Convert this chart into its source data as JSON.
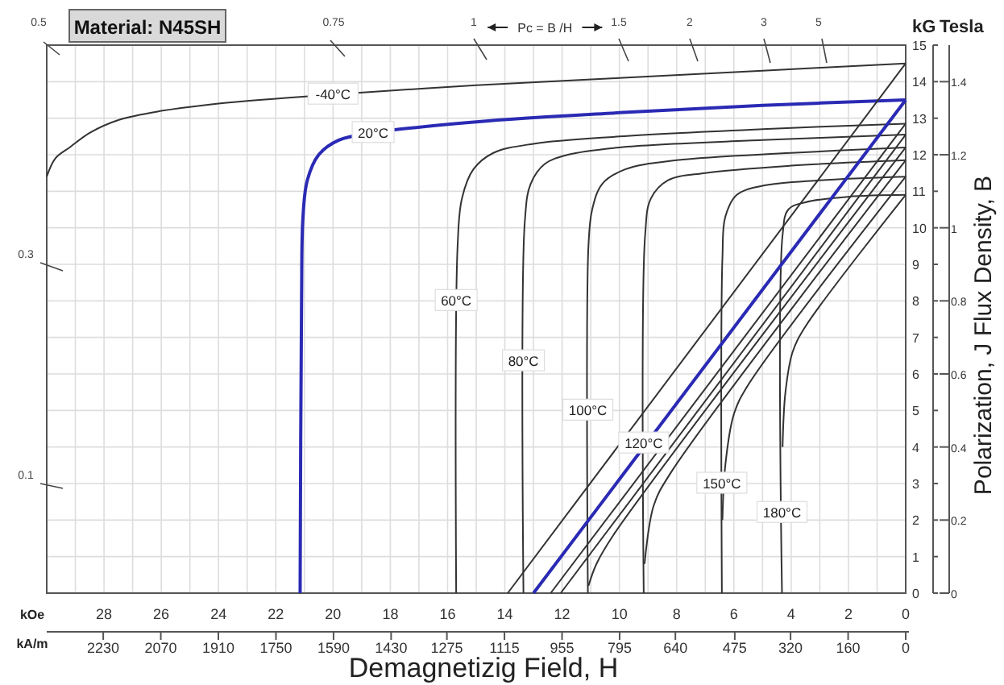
{
  "chart_data": {
    "type": "line",
    "title": "Material: N45SH",
    "xlabel": "Demagnetizig Field, H",
    "y2label": "Polarization, J  Flux Density, B",
    "xlim": [
      30,
      0
    ],
    "ylim": [
      0,
      15
    ],
    "y2lim": [
      0,
      1.5
    ],
    "x2lim": [
      2387,
      0
    ],
    "xticks": [
      {
        "value": 30,
        "label": null
      },
      {
        "value": 29,
        "label": null
      },
      28,
      {
        "value": 27,
        "label": null
      },
      26,
      {
        "value": 25,
        "label": null
      },
      24,
      {
        "value": 23,
        "label": null
      },
      22,
      {
        "value": 21,
        "label": null
      },
      20,
      {
        "value": 19,
        "label": null
      },
      18,
      {
        "value": 17,
        "label": null
      },
      16,
      {
        "value": 15,
        "label": null
      },
      14,
      {
        "value": 13,
        "label": null
      },
      12,
      {
        "value": 11,
        "label": null
      },
      10,
      {
        "value": 9,
        "label": null
      },
      8,
      {
        "value": 7,
        "label": null
      },
      6,
      {
        "value": 5,
        "label": null
      },
      4,
      {
        "value": 3,
        "label": null
      },
      2,
      {
        "value": 1,
        "label": null
      },
      0
    ],
    "x2ticks": [
      2230,
      2070,
      1910,
      1750,
      1590,
      1430,
      1275,
      1115,
      955,
      795,
      640,
      475,
      320,
      160,
      0
    ],
    "yticks": [
      0,
      1,
      2,
      3,
      4,
      5,
      6,
      7,
      8,
      9,
      10,
      11,
      12,
      13,
      14,
      15
    ],
    "y2ticks": [
      0,
      0.2,
      0.4,
      0.6,
      0.8,
      1.0,
      1.2,
      1.4
    ],
    "grid": true,
    "marker": "none",
    "line_style": "solid",
    "series": [
      {
        "color": "#333333",
        "x": [
          0,
          5,
          10,
          15,
          20,
          24,
          26,
          27.5,
          28.5,
          29.2,
          29.7,
          30
        ],
        "values": [
          14.5,
          14.3,
          14.1,
          13.9,
          13.65,
          13.4,
          13.2,
          12.95,
          12.6,
          12.2,
          11.9,
          11.4
        ]
      },
      {
        "color": "#2a2ab4",
        "x": [
          0,
          5,
          10,
          15,
          18.6,
          19.8,
          20.5,
          20.9,
          21.05,
          21.1,
          21.15
        ],
        "values": [
          13.5,
          13.35,
          13.15,
          12.9,
          12.6,
          12.4,
          12.0,
          11.3,
          10.3,
          8,
          0
        ]
      },
      {
        "color": "#333333",
        "x": [
          0,
          5,
          10,
          13,
          14.4,
          15.1,
          15.5,
          15.65,
          15.7
        ],
        "values": [
          12.85,
          12.7,
          12.5,
          12.3,
          12.05,
          11.6,
          10.8,
          9.5,
          0
        ]
      },
      {
        "color": "#333333",
        "x": [
          0,
          5,
          10,
          11.8,
          12.6,
          13.1,
          13.3,
          13.35
        ],
        "values": [
          12.55,
          12.4,
          12.2,
          12.0,
          11.75,
          11.2,
          10.2,
          0
        ]
      },
      {
        "color": "#333333",
        "x": [
          0,
          4,
          8,
          9.8,
          10.6,
          10.95,
          11.08,
          11.1
        ],
        "values": [
          12.2,
          12.05,
          11.85,
          11.6,
          11.2,
          10.5,
          9.5,
          0
        ]
      },
      {
        "color": "#333333",
        "x": [
          0,
          4,
          7,
          8.3,
          8.9,
          9.1,
          9.15
        ],
        "values": [
          11.85,
          11.7,
          11.5,
          11.3,
          10.8,
          9.8,
          0
        ]
      },
      {
        "color": "#333333",
        "x": [
          0,
          3,
          5,
          5.9,
          6.3,
          6.4,
          6.42
        ],
        "values": [
          11.4,
          11.3,
          11.15,
          10.9,
          10.3,
          9.2,
          0
        ]
      },
      {
        "color": "#333333",
        "x": [
          0,
          2,
          3.5,
          4.1,
          4.3,
          4.32
        ],
        "values": [
          10.9,
          10.85,
          10.7,
          10.5,
          9.8,
          0
        ]
      },
      {
        "color": "#333333",
        "x": [
          0,
          13.9
        ],
        "values": [
          14.5,
          0
        ]
      },
      {
        "color": "#2a2ab4",
        "x": [
          0,
          13.0
        ],
        "values": [
          13.5,
          0
        ]
      },
      {
        "color": "#333333",
        "x": [
          0,
          12.4
        ],
        "values": [
          12.85,
          0
        ]
      },
      {
        "color": "#333333",
        "x": [
          0,
          12.05
        ],
        "values": [
          12.55,
          0
        ]
      },
      {
        "color": "#333333",
        "x": [
          0,
          10.2,
          10.8,
          11.08
        ],
        "values": [
          12.2,
          1.6,
          0.8,
          0.2
        ]
      },
      {
        "color": "#333333",
        "x": [
          0,
          8.2,
          8.8,
          9.12
        ],
        "values": [
          11.85,
          3.3,
          2.4,
          0.8
        ]
      },
      {
        "color": "#333333",
        "x": [
          0,
          5.5,
          6.0,
          6.3,
          6.4
        ],
        "values": [
          11.4,
          5.7,
          4.9,
          3.5,
          2.0
        ]
      },
      {
        "color": "#333333",
        "x": [
          0,
          3.5,
          3.95,
          4.2,
          4.3
        ],
        "values": [
          10.9,
          7.3,
          6.6,
          5.5,
          4.0
        ]
      }
    ],
    "annotations": [
      "kG",
      "Tesla",
      "kOe",
      "kA/m",
      "Pc = B /H",
      {
        "text": "-40°C",
        "x": 20,
        "y": 13.65
      },
      {
        "text": "20°C",
        "x": 18.6,
        "y": 12.6
      },
      {
        "text": "60°C",
        "x": 15.7,
        "y": 8
      },
      {
        "text": "80°C",
        "x": 13.35,
        "y": 6.35
      },
      {
        "text": "100°C",
        "x": 11.1,
        "y": 5
      },
      {
        "text": "120°C",
        "x": 9.15,
        "y": 4.1
      },
      {
        "text": "150°C",
        "x": 6.42,
        "y": 3
      },
      {
        "text": "180°C",
        "x": 4.32,
        "y": 2.2
      },
      "0.5",
      "0.75",
      "1",
      "1.5",
      "2",
      "3",
      "5",
      "0.3",
      "0.1"
    ]
  }
}
